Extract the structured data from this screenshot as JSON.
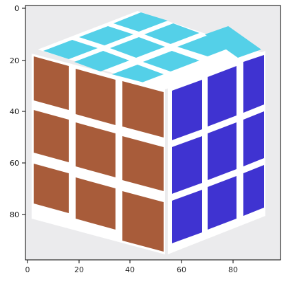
{
  "figure": {
    "x_ticks": [
      "0",
      "20",
      "40",
      "60",
      "80"
    ],
    "y_ticks": [
      "0",
      "20",
      "40",
      "60",
      "80"
    ]
  },
  "image": {
    "description_colors": {
      "background": "#ebebed",
      "top_face": "#54d0e8",
      "left_face": "#a85c3a",
      "right_face": "#3f33d1",
      "gridlines": "#ffffff"
    }
  }
}
